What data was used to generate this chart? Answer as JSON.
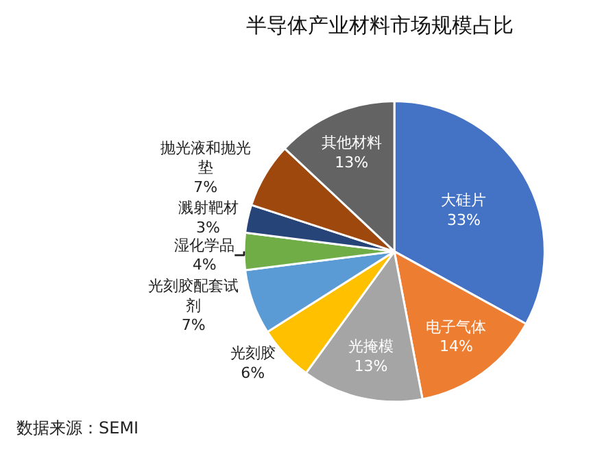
{
  "chart_data": {
    "type": "pie",
    "title": "半导体产业材料市场规模占比",
    "categories": [
      "大硅片",
      "电子气体",
      "光掩模",
      "光刻胶",
      "光刻胶配套试剂",
      "湿化学品",
      "溅射靶材",
      "抛光液和抛光垫",
      "其他材料"
    ],
    "values": [
      33,
      14,
      13,
      6,
      7,
      4,
      3,
      7,
      13
    ],
    "value_labels": [
      "33%",
      "14%",
      "13%",
      "6%",
      "7%",
      "4%",
      "3%",
      "7%",
      "13%"
    ],
    "colors": [
      "#4472c4",
      "#ed7d31",
      "#a5a5a5",
      "#ffc000",
      "#5b9bd5",
      "#70ad47",
      "#264478",
      "#9e480e",
      "#636363"
    ],
    "annotations": [
      "数据来源：SEMI"
    ],
    "legend": false
  }
}
